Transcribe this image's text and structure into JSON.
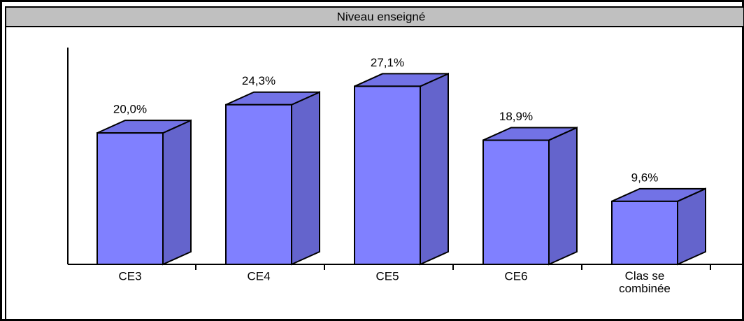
{
  "chart_data": {
    "type": "bar3d",
    "title": "Niveau enseigné",
    "categories": [
      "CE3",
      "CE4",
      "CE5",
      "CE6",
      "Clas se\ncombinée"
    ],
    "values": [
      20.0,
      24.3,
      27.1,
      18.9,
      9.6
    ],
    "value_labels": [
      "20,0%",
      "24,3%",
      "27,1%",
      "18,9%",
      "9,6%"
    ],
    "color": "#8080ff",
    "ylim": [
      0,
      33
    ]
  }
}
